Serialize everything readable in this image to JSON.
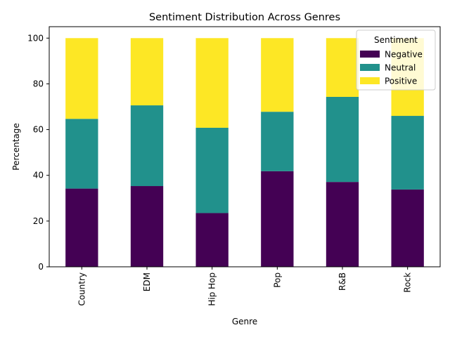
{
  "chart_data": {
    "type": "bar",
    "stacked": true,
    "title": "Sentiment Distribution Across Genres",
    "xlabel": "Genre",
    "ylabel": "Percentage",
    "ylim": [
      0,
      105
    ],
    "yticks": [
      0,
      20,
      40,
      60,
      80,
      100
    ],
    "categories": [
      "Country",
      "EDM",
      "Hip Hop",
      "Pop",
      "R&B",
      "Rock"
    ],
    "series": [
      {
        "name": "Negative",
        "color": "#440154",
        "values": [
          34.2,
          35.3,
          23.5,
          41.8,
          37.1,
          33.8
        ]
      },
      {
        "name": "Neutral",
        "color": "#21918c",
        "values": [
          30.5,
          35.3,
          37.3,
          26.0,
          37.2,
          32.2
        ]
      },
      {
        "name": "Positive",
        "color": "#fde725",
        "values": [
          35.3,
          29.4,
          39.2,
          32.2,
          25.7,
          34.0
        ]
      }
    ],
    "legend": {
      "title": "Sentiment",
      "position": "top-right"
    },
    "grid": false
  }
}
